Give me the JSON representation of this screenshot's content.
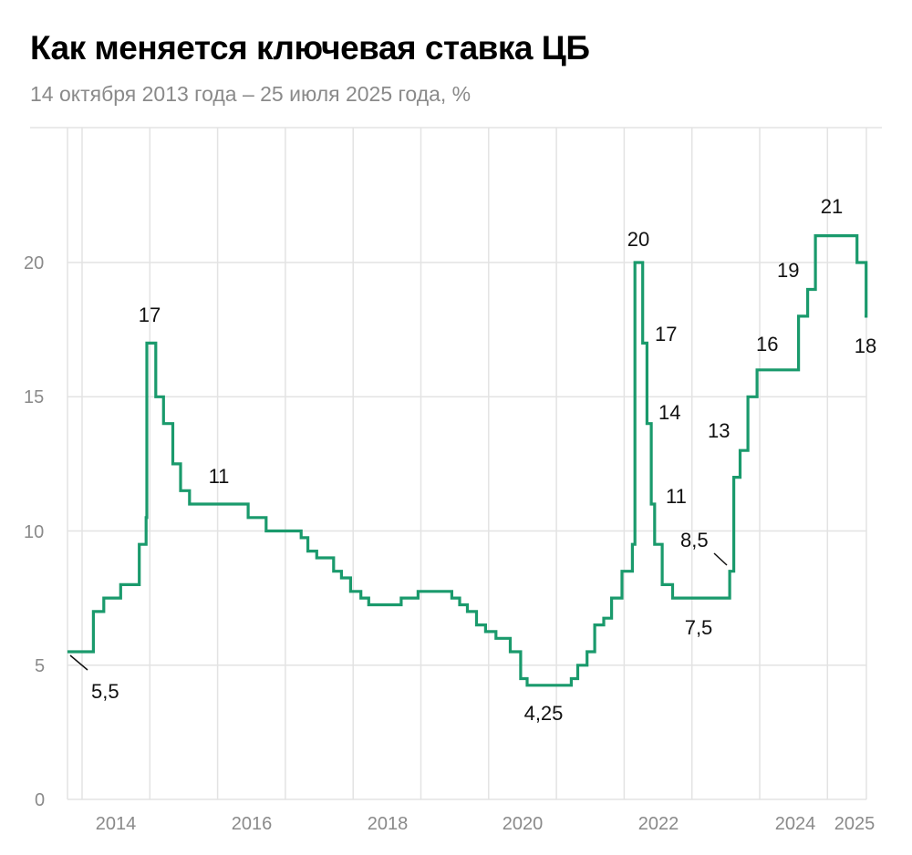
{
  "header": {
    "title": "Как меняется ключевая ставка ЦБ",
    "subtitle": "14 октября 2013 года – 25 июля 2025 года, %"
  },
  "colors": {
    "line": "#1a9a6c",
    "grid": "#e3e3e3",
    "axis_text": "#8a8a8a",
    "annotation": "#111111"
  },
  "chart_data": {
    "type": "line",
    "step": true,
    "title": "Как меняется ключевая ставка ЦБ",
    "subtitle": "14 октября 2013 года – 25 июля 2025 года, %",
    "xlabel": "",
    "ylabel": "%",
    "ylim": [
      0,
      22.5
    ],
    "yticks": [
      0,
      5,
      10,
      15,
      20
    ],
    "xticks": [
      "2014",
      "2016",
      "2018",
      "2020",
      "2022",
      "2024",
      "2025"
    ],
    "grid": true,
    "legend": null,
    "series": [
      {
        "name": "Ключевая ставка ЦБ",
        "points": [
          [
            "2013-10-14",
            5.5
          ],
          [
            "2014-03-03",
            7.0
          ],
          [
            "2014-04-28",
            7.5
          ],
          [
            "2014-07-28",
            8.0
          ],
          [
            "2014-11-05",
            9.5
          ],
          [
            "2014-12-12",
            10.5
          ],
          [
            "2014-12-16",
            17.0
          ],
          [
            "2015-02-02",
            15.0
          ],
          [
            "2015-03-16",
            14.0
          ],
          [
            "2015-05-05",
            12.5
          ],
          [
            "2015-06-16",
            11.5
          ],
          [
            "2015-08-03",
            11.0
          ],
          [
            "2016-06-14",
            10.5
          ],
          [
            "2016-09-19",
            10.0
          ],
          [
            "2017-03-27",
            9.75
          ],
          [
            "2017-05-02",
            9.25
          ],
          [
            "2017-06-19",
            9.0
          ],
          [
            "2017-09-18",
            8.5
          ],
          [
            "2017-10-30",
            8.25
          ],
          [
            "2017-12-18",
            7.75
          ],
          [
            "2018-02-12",
            7.5
          ],
          [
            "2018-03-26",
            7.25
          ],
          [
            "2018-09-17",
            7.5
          ],
          [
            "2018-12-17",
            7.75
          ],
          [
            "2019-06-17",
            7.5
          ],
          [
            "2019-07-29",
            7.25
          ],
          [
            "2019-09-09",
            7.0
          ],
          [
            "2019-10-28",
            6.5
          ],
          [
            "2019-12-16",
            6.25
          ],
          [
            "2020-02-10",
            6.0
          ],
          [
            "2020-04-27",
            5.5
          ],
          [
            "2020-06-22",
            4.5
          ],
          [
            "2020-07-27",
            4.25
          ],
          [
            "2021-03-22",
            4.5
          ],
          [
            "2021-04-26",
            5.0
          ],
          [
            "2021-06-15",
            5.5
          ],
          [
            "2021-07-26",
            6.5
          ],
          [
            "2021-09-13",
            6.75
          ],
          [
            "2021-10-25",
            7.5
          ],
          [
            "2021-12-20",
            8.5
          ],
          [
            "2022-02-14",
            9.5
          ],
          [
            "2022-02-28",
            20.0
          ],
          [
            "2022-04-11",
            17.0
          ],
          [
            "2022-05-04",
            14.0
          ],
          [
            "2022-05-27",
            11.0
          ],
          [
            "2022-06-14",
            9.5
          ],
          [
            "2022-07-25",
            8.0
          ],
          [
            "2022-09-19",
            7.5
          ],
          [
            "2023-07-24",
            8.5
          ],
          [
            "2023-08-15",
            12.0
          ],
          [
            "2023-09-18",
            13.0
          ],
          [
            "2023-10-30",
            15.0
          ],
          [
            "2023-12-18",
            16.0
          ],
          [
            "2024-07-29",
            18.0
          ],
          [
            "2024-09-16",
            19.0
          ],
          [
            "2024-10-28",
            21.0
          ],
          [
            "2025-06-09",
            20.0
          ],
          [
            "2025-07-28",
            18.0
          ]
        ]
      }
    ],
    "annotations": [
      {
        "text": "5,5",
        "value": 5.5
      },
      {
        "text": "17",
        "value": 17
      },
      {
        "text": "11",
        "value": 11
      },
      {
        "text": "4,25",
        "value": 4.25
      },
      {
        "text": "20",
        "value": 20
      },
      {
        "text": "17",
        "value": 17
      },
      {
        "text": "14",
        "value": 14
      },
      {
        "text": "11",
        "value": 11
      },
      {
        "text": "8,5",
        "value": 8.5
      },
      {
        "text": "7,5",
        "value": 7.5
      },
      {
        "text": "13",
        "value": 13
      },
      {
        "text": "16",
        "value": 16
      },
      {
        "text": "19",
        "value": 19
      },
      {
        "text": "21",
        "value": 21
      },
      {
        "text": "18",
        "value": 18
      }
    ]
  },
  "axis": {
    "y_labels": [
      "0",
      "5",
      "10",
      "15",
      "20"
    ],
    "x_labels": [
      "2014",
      "2016",
      "2018",
      "2020",
      "2022",
      "2024",
      "2025"
    ]
  }
}
